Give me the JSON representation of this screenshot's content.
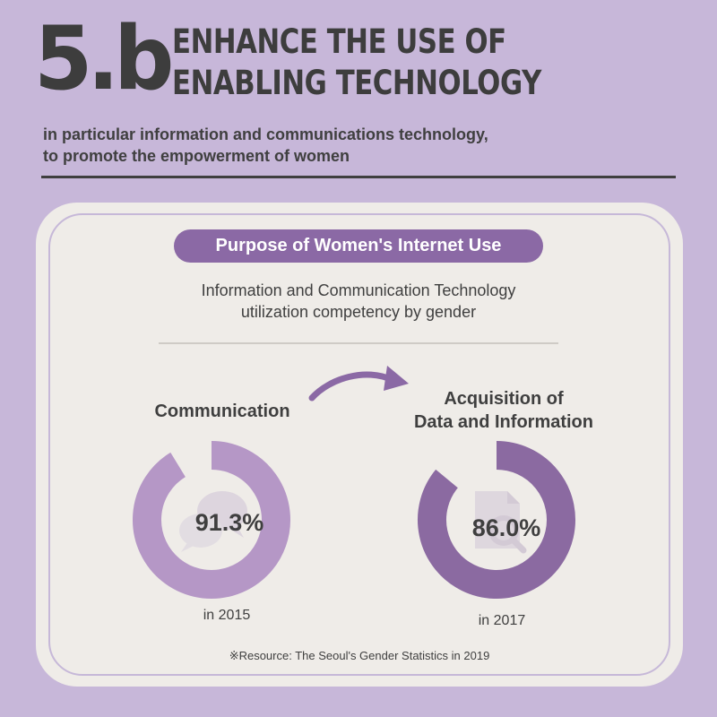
{
  "header": {
    "goal_number": "5.b",
    "headline_line1": "ENHANCE THE USE OF",
    "headline_line2": "ENABLING TECHNOLOGY",
    "subline_line1": "in particular information and communications technology,",
    "subline_line2": "to promote the empowerment of women"
  },
  "card": {
    "pill_title": "Purpose of Women's Internet Use",
    "description_line1": "Information and Communication Technology",
    "description_line2": "utilization competency by gender",
    "left": {
      "label": "Communication",
      "value_text": "91.3%",
      "value": 91.3,
      "year_text": "in 2015",
      "icon": "chat-bubbles-icon",
      "color": "#b597c6"
    },
    "right": {
      "label_line1": "Acquisition of",
      "label_line2": "Data and Information",
      "value_text": "86.0%",
      "value": 86.0,
      "year_text": "in 2017",
      "icon": "document-search-icon",
      "color": "#8b6aa1"
    },
    "source": "※Resource: The Seoul's Gender Statistics in 2019"
  },
  "colors": {
    "background": "#c7b7d9",
    "card": "#efece8",
    "pill": "#8b69a5",
    "text": "#3f3f3f"
  }
}
